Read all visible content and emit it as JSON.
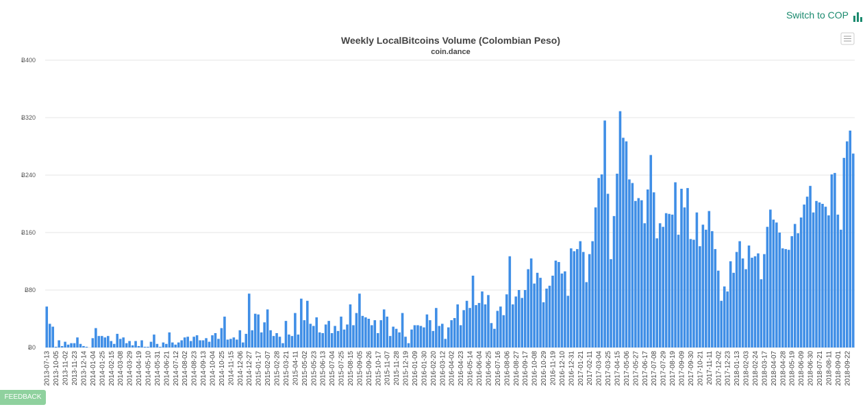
{
  "page": {
    "switch_link": "Switch to COP",
    "feedback": "FEEDBACK"
  },
  "chart_data": {
    "type": "bar",
    "title": "Weekly LocalBitcoins Volume (Colombian Peso)",
    "subtitle": "coin.dance",
    "color": "#3f8ee6",
    "grid": true,
    "ylim": [
      0,
      400
    ],
    "yticks": [
      {
        "value": 0,
        "label": "Ƀ0"
      },
      {
        "value": 80,
        "label": "Ƀ80"
      },
      {
        "value": 160,
        "label": "Ƀ160"
      },
      {
        "value": 240,
        "label": "Ƀ240"
      },
      {
        "value": 320,
        "label": "Ƀ320"
      },
      {
        "value": 400,
        "label": "Ƀ400"
      }
    ],
    "categories": [
      "2013-07-13",
      null,
      null,
      "2013-10-05",
      null,
      null,
      "2013-11-02",
      null,
      null,
      "2013-11-23",
      null,
      null,
      "2013-12-14",
      null,
      null,
      "2014-01-04",
      null,
      null,
      "2014-01-25",
      null,
      null,
      "2014-02-15",
      null,
      null,
      "2014-03-08",
      null,
      null,
      "2014-03-29",
      null,
      null,
      "2014-04-19",
      null,
      null,
      "2014-05-10",
      null,
      null,
      "2014-05-31",
      null,
      null,
      "2014-06-21",
      null,
      null,
      "2014-07-12",
      null,
      null,
      "2014-08-02",
      null,
      null,
      "2014-08-23",
      null,
      null,
      "2014-09-13",
      null,
      null,
      "2014-10-04",
      null,
      null,
      "2014-10-25",
      null,
      null,
      "2014-11-15",
      null,
      null,
      "2014-12-06",
      null,
      null,
      "2014-12-27",
      null,
      null,
      "2015-01-17",
      null,
      null,
      "2015-02-07",
      null,
      null,
      "2015-02-28",
      null,
      null,
      "2015-03-21",
      null,
      null,
      "2015-04-11",
      null,
      null,
      "2015-05-02",
      null,
      null,
      "2015-05-23",
      null,
      null,
      "2015-06-13",
      null,
      null,
      "2015-07-04",
      null,
      null,
      "2015-07-25",
      null,
      null,
      "2015-08-15",
      null,
      null,
      "2015-09-05",
      null,
      null,
      "2015-09-26",
      null,
      null,
      "2015-10-17",
      null,
      null,
      "2015-11-07",
      null,
      null,
      "2015-11-28",
      null,
      null,
      "2015-12-19",
      null,
      null,
      "2016-01-09",
      null,
      null,
      "2016-01-30",
      null,
      null,
      "2016-02-20",
      null,
      null,
      "2016-03-12",
      null,
      null,
      "2016-04-02",
      null,
      null,
      "2016-04-23",
      null,
      null,
      "2016-05-14",
      null,
      null,
      "2016-06-04",
      null,
      null,
      "2016-06-25",
      null,
      null,
      "2016-07-16",
      null,
      null,
      "2016-08-06",
      null,
      null,
      "2016-08-27",
      null,
      null,
      "2016-09-17",
      null,
      null,
      "2016-10-08",
      null,
      null,
      "2016-10-29",
      null,
      null,
      "2016-11-19",
      null,
      null,
      "2016-12-10",
      null,
      null,
      "2016-12-31",
      null,
      null,
      "2017-01-21",
      null,
      null,
      "2017-02-11",
      null,
      null,
      "2017-03-04",
      null,
      null,
      "2017-03-25",
      null,
      null,
      "2017-04-15",
      null,
      null,
      "2017-05-06",
      null,
      null,
      "2017-05-27",
      null,
      null,
      "2017-06-17",
      null,
      null,
      "2017-07-08",
      null,
      null,
      "2017-07-29",
      null,
      null,
      "2017-08-19",
      null,
      null,
      "2017-09-09",
      null,
      null,
      "2017-09-30",
      null,
      null,
      "2017-10-21",
      null,
      null,
      "2017-11-11",
      null,
      null,
      "2017-12-02",
      null,
      null,
      "2017-12-23",
      null,
      null,
      "2018-01-13",
      null,
      null,
      "2018-02-03",
      null,
      null,
      "2018-02-24",
      null,
      null,
      "2018-03-17",
      null,
      null,
      "2018-04-07",
      null,
      null,
      "2018-04-28",
      null,
      null,
      "2018-05-19",
      null,
      null,
      "2018-06-09",
      null,
      null,
      "2018-06-30",
      null,
      null,
      "2018-07-21",
      null,
      null,
      "2018-08-11",
      null,
      null,
      "2018-09-01",
      null,
      null,
      "2018-09-22",
      null,
      null
    ],
    "values": [
      57,
      33,
      29,
      1,
      10,
      2,
      8,
      4,
      6,
      6,
      14,
      5,
      2,
      1,
      0,
      13,
      27,
      16,
      16,
      14,
      16,
      9,
      5,
      19,
      12,
      14,
      6,
      9,
      3,
      9,
      2,
      10,
      1,
      1,
      8,
      18,
      5,
      1,
      7,
      5,
      21,
      7,
      4,
      7,
      10,
      14,
      15,
      9,
      15,
      17,
      10,
      10,
      13,
      8,
      17,
      20,
      12,
      27,
      43,
      11,
      12,
      14,
      11,
      24,
      7,
      19,
      75,
      24,
      47,
      46,
      21,
      35,
      53,
      24,
      16,
      20,
      15,
      6,
      37,
      18,
      16,
      48,
      18,
      68,
      38,
      65,
      33,
      30,
      42,
      21,
      20,
      32,
      37,
      20,
      30,
      23,
      43,
      25,
      32,
      60,
      31,
      48,
      75,
      44,
      42,
      40,
      31,
      38,
      20,
      38,
      53,
      43,
      16,
      29,
      26,
      21,
      48,
      15,
      6,
      25,
      31,
      31,
      30,
      28,
      46,
      38,
      23,
      55,
      30,
      33,
      12,
      28,
      38,
      41,
      60,
      31,
      52,
      65,
      55,
      100,
      59,
      62,
      78,
      60,
      73,
      34,
      26,
      51,
      57,
      45,
      74,
      127,
      60,
      71,
      80,
      69,
      80,
      109,
      124,
      89,
      104,
      97,
      63,
      82,
      86,
      100,
      121,
      119,
      103,
      106,
      72,
      138,
      134,
      137,
      148,
      133,
      91,
      130,
      148,
      195,
      236,
      241,
      316,
      214,
      123,
      183,
      242,
      329,
      292,
      287,
      234,
      229,
      204,
      208,
      205,
      173,
      220,
      268,
      216,
      152,
      173,
      168,
      187,
      186,
      185,
      230,
      157,
      221,
      195,
      222,
      151,
      150,
      188,
      141,
      171,
      164,
      190,
      162,
      137,
      107,
      65,
      85,
      78,
      120,
      104,
      133,
      148,
      124,
      109,
      142,
      125,
      127,
      131,
      95,
      130,
      168,
      192,
      178,
      174,
      160,
      138,
      137,
      136,
      155,
      172,
      159,
      181,
      199,
      210,
      225,
      188,
      204,
      202,
      200,
      196,
      184,
      241,
      243,
      185,
      164,
      264,
      287,
      302,
      270
    ]
  }
}
